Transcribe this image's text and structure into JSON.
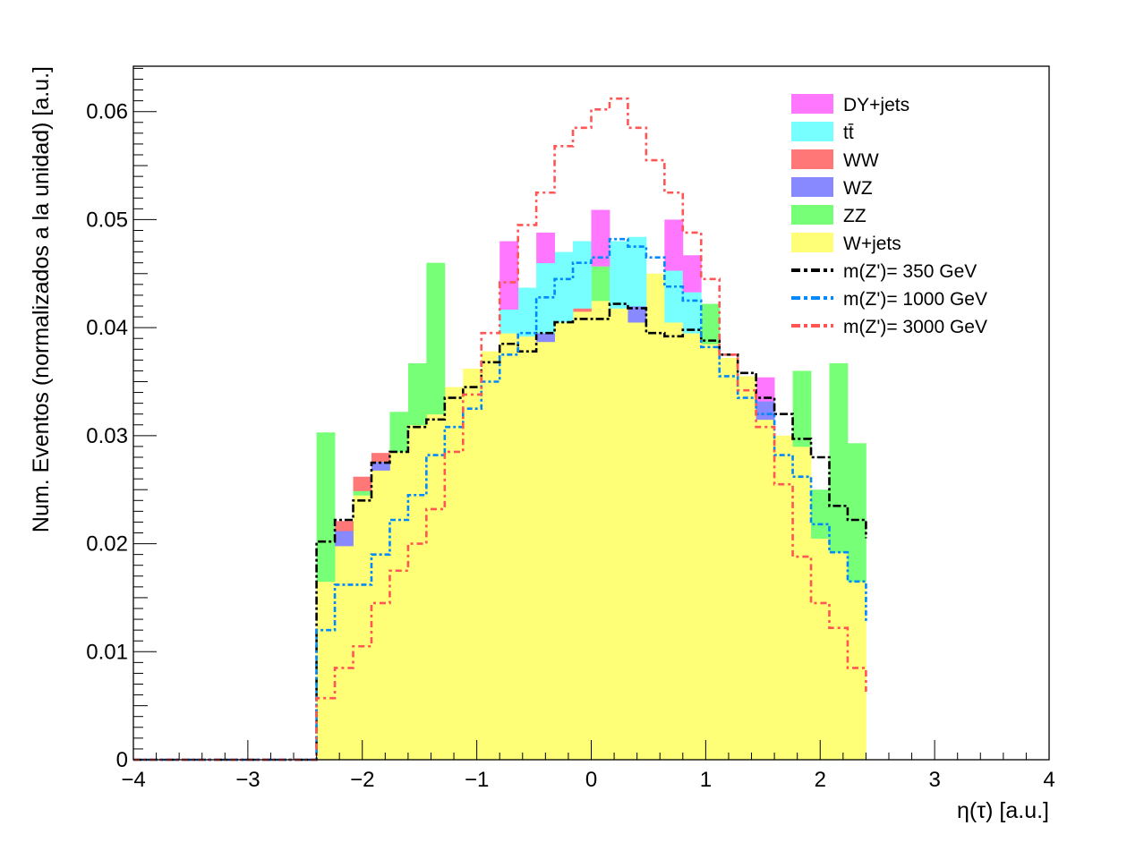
{
  "chart_data": {
    "type": "bar",
    "subtype": "stacked histogram with overlaid step lines",
    "title": "",
    "xlabel": "η(τ) [a.u.]",
    "ylabel": "Num. Eventos (normalizados a la unidad) [a.u.]",
    "xlim": [
      -4,
      4
    ],
    "ylim": [
      0,
      0.0642
    ],
    "x_ticks": [
      "−4",
      "−3",
      "−2",
      "−1",
      "0",
      "1",
      "2",
      "3",
      "4"
    ],
    "y_ticks": [
      "0",
      "0.01",
      "0.02",
      "0.03",
      "0.04",
      "0.05",
      "0.06"
    ],
    "grid": false,
    "legend_position": "top-right",
    "bin_edges": [
      -2.4,
      -2.24,
      -2.08,
      -1.92,
      -1.76,
      -1.6,
      -1.44,
      -1.28,
      -1.12,
      -0.96,
      -0.8,
      -0.64,
      -0.48,
      -0.32,
      -0.16,
      0,
      0.16,
      0.32,
      0.48,
      0.64,
      0.8,
      0.96,
      1.12,
      1.28,
      1.44,
      1.6,
      1.76,
      1.92,
      2.08,
      2.24,
      2.4
    ],
    "stack_order_bottom_to_top": [
      "W+jets",
      "ZZ",
      "WZ",
      "WW",
      "tt̄",
      "DY+jets"
    ],
    "stacked_series": [
      {
        "name": "W+jets",
        "color": "#ffff77",
        "values": [
          0.0165,
          0.0198,
          0.0245,
          0.0268,
          0.0285,
          0.031,
          0.032,
          0.0345,
          0.0362,
          0.0378,
          0.0395,
          0.0392,
          0.0387,
          0.0405,
          0.0415,
          0.0425,
          0.0418,
          0.0405,
          0.045,
          0.0405,
          0.0395,
          0.0385,
          0.0372,
          0.0355,
          0.0315,
          0.03,
          0.029,
          0.0205,
          0.0192,
          0.0165
        ]
      },
      {
        "name": "ZZ",
        "color": "#77ff77",
        "values": [
          0.0138,
          0.0,
          0.0004,
          0.0,
          0.0037,
          0.0057,
          0.014,
          0.0,
          0.0,
          0.0,
          0.0,
          0.0,
          0.0,
          0.0,
          0.0,
          0.0032,
          0.0,
          0.0,
          0.0,
          0.0,
          0.0,
          0.0037,
          0.0,
          0.0,
          0.0,
          0.0,
          0.007,
          0.0045,
          0.0175,
          0.0128
        ]
      },
      {
        "name": "WZ",
        "color": "#8888ff",
        "values": [
          0.0,
          0.0014,
          0.0,
          0.0008,
          0.0,
          0.0,
          0.0,
          0.0,
          0.0,
          0.0,
          0.0,
          0.0,
          0.0008,
          0.0,
          0.0,
          0.0,
          0.0,
          0.0015,
          0.0,
          0.0,
          0.0,
          0.0,
          0.0,
          0.0,
          0.0017,
          0.0,
          0.0,
          0.0,
          0.0,
          0.0
        ]
      },
      {
        "name": "WW",
        "color": "#ff7777",
        "values": [
          0.0,
          0.0009,
          0.0013,
          0.0008,
          0.0,
          0.0,
          0.0,
          0.0,
          0.0,
          0.0,
          0.0,
          0.0,
          0.0,
          0.0,
          0.0003,
          0.0,
          0.0,
          0.0,
          0.0,
          0.0,
          0.0,
          0.0,
          0.0,
          0.0,
          0.0,
          0.0,
          0.0,
          0.0,
          0.0,
          0.0
        ]
      },
      {
        "name": "tt̄",
        "color": "#77ffff",
        "values": [
          0.0,
          0.0,
          0.0,
          0.0,
          0.0,
          0.0,
          0.0,
          0.0,
          0.0,
          0.0,
          0.0022,
          0.0045,
          0.0065,
          0.0065,
          0.0062,
          0.0,
          0.0062,
          0.0064,
          0.0,
          0.0048,
          0.0038,
          0.0,
          0.0,
          0.0,
          0.0,
          0.0,
          0.0,
          0.0,
          0.0,
          0.0
        ]
      },
      {
        "name": "DY+jets",
        "color": "#ff77ff",
        "values": [
          0.0,
          0.0,
          0.0,
          0.0,
          0.0,
          0.0,
          0.0,
          0.0,
          0.0,
          0.0,
          0.0063,
          0.0,
          0.0028,
          0.0,
          0.0,
          0.0052,
          0.0,
          0.0,
          0.0,
          0.0047,
          0.0034,
          0.0,
          0.0,
          0.0,
          0.0022,
          0.0,
          0.0,
          0.0,
          0.0,
          0.0
        ]
      }
    ],
    "line_series": [
      {
        "name": "m(Z')= 350 GeV",
        "color": "#000000",
        "values": [
          0.0202,
          0.0222,
          0.024,
          0.0275,
          0.0285,
          0.0308,
          0.0315,
          0.0335,
          0.0345,
          0.0368,
          0.0385,
          0.0378,
          0.0395,
          0.0405,
          0.0408,
          0.0408,
          0.0422,
          0.0418,
          0.0395,
          0.0392,
          0.0398,
          0.0388,
          0.0375,
          0.0358,
          0.0335,
          0.032,
          0.0297,
          0.028,
          0.0235,
          0.0222,
          0.0205
        ]
      },
      {
        "name": "m(Z')= 1000 GeV",
        "color": "#0088ff",
        "values": [
          0.012,
          0.0162,
          0.0162,
          0.019,
          0.0222,
          0.0245,
          0.0282,
          0.0308,
          0.0325,
          0.035,
          0.0375,
          0.0395,
          0.0428,
          0.0445,
          0.046,
          0.0465,
          0.0482,
          0.0475,
          0.0465,
          0.0438,
          0.0425,
          0.0382,
          0.0355,
          0.0335,
          0.032,
          0.0282,
          0.0262,
          0.0218,
          0.0192,
          0.0165,
          0.0128
        ]
      },
      {
        "name": "m(Z')= 3000 GeV",
        "color": "#ff5555",
        "values": [
          0.0057,
          0.0085,
          0.0105,
          0.0145,
          0.0175,
          0.02,
          0.0232,
          0.0285,
          0.0338,
          0.0395,
          0.0442,
          0.0495,
          0.0525,
          0.0568,
          0.0585,
          0.0602,
          0.0612,
          0.0585,
          0.0555,
          0.0525,
          0.0488,
          0.0445,
          0.0375,
          0.0342,
          0.0308,
          0.0255,
          0.0188,
          0.0145,
          0.0122,
          0.0085,
          0.0063
        ]
      }
    ]
  }
}
